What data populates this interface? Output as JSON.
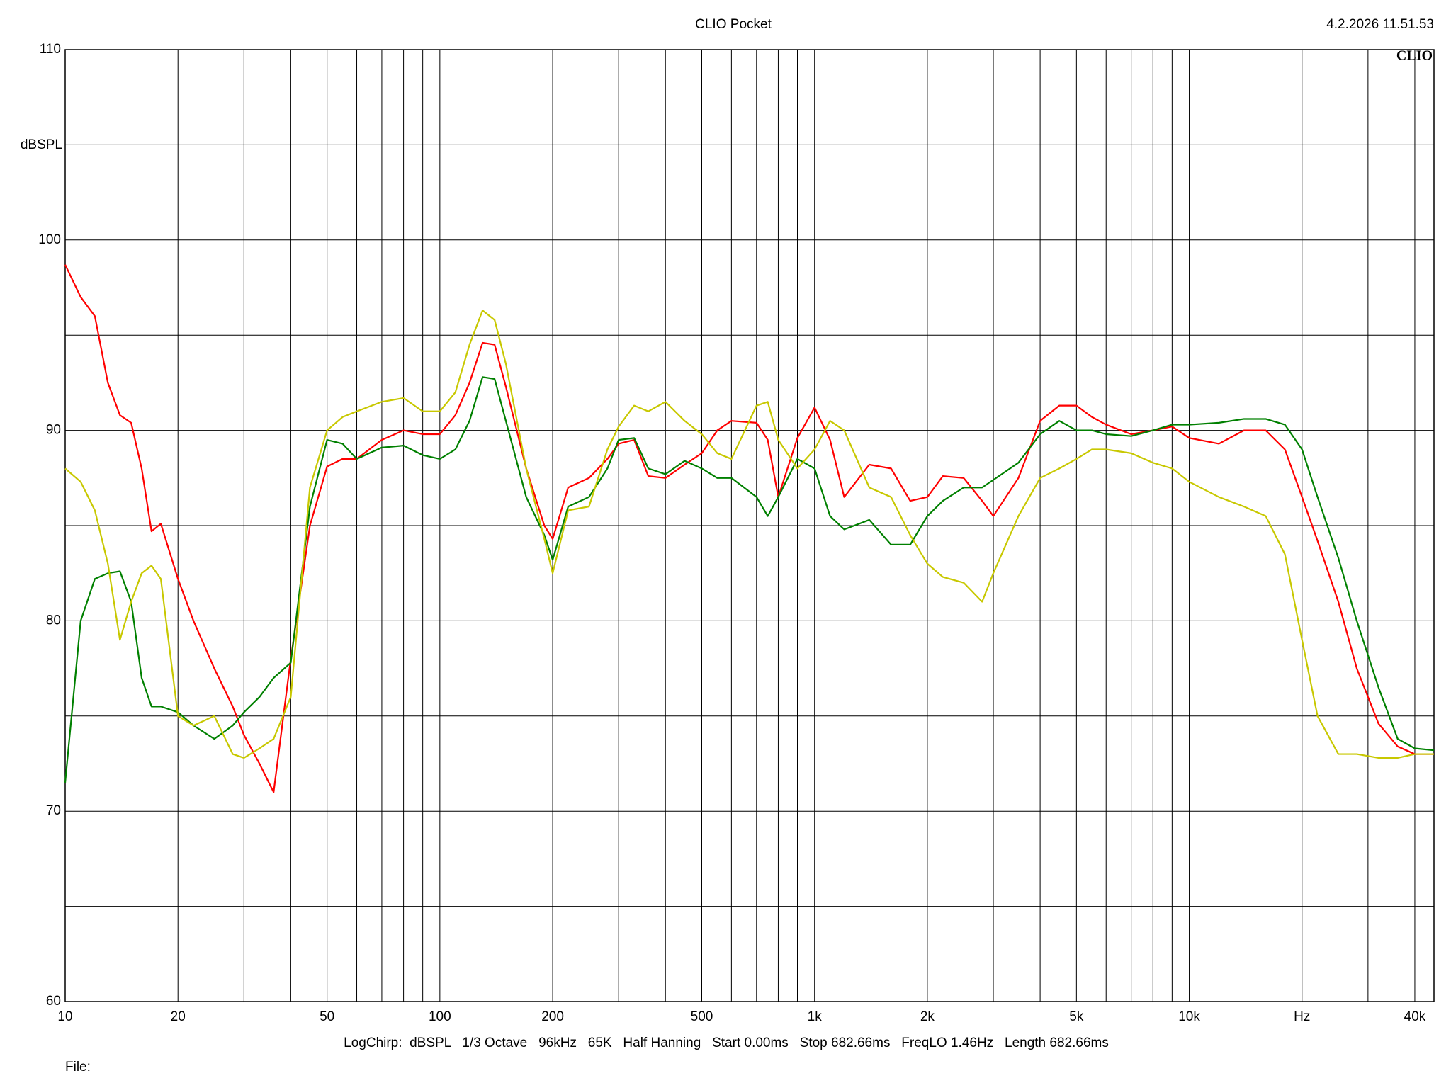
{
  "chart_data": {
    "type": "line",
    "title": "CLIO Pocket",
    "timestamp": "4.2.2026 11.51.53",
    "logo": "CLIO",
    "y_label": "dBSPL",
    "footer": "LogChirp:  dBSPL   1/3 Octave   96kHz   65K   Half Hanning   Start 0.00ms   Stop 682.66ms   FreqLO 1.46Hz   Length 682.66ms",
    "file_label": "File:",
    "xscale": "log",
    "grid": true,
    "xlim": [
      10,
      45000
    ],
    "ylim": [
      60,
      110
    ],
    "xticks": [
      10,
      20,
      50,
      100,
      200,
      500,
      {
        "value": 1000,
        "label": "1k"
      },
      {
        "value": 2000,
        "label": "2k"
      },
      {
        "value": 5000,
        "label": "5k"
      },
      {
        "value": 10000,
        "label": "10k"
      },
      {
        "value": 20000,
        "label": "Hz"
      },
      {
        "value": 40000,
        "label": "40k"
      }
    ],
    "yticks": [
      60,
      70,
      80,
      90,
      100,
      110
    ],
    "x_grid": [
      10,
      20,
      30,
      40,
      50,
      60,
      70,
      80,
      90,
      100,
      200,
      300,
      400,
      500,
      600,
      700,
      800,
      900,
      1000,
      2000,
      3000,
      4000,
      5000,
      6000,
      7000,
      8000,
      9000,
      10000,
      20000,
      30000,
      40000
    ],
    "y_grid": [
      60,
      65,
      70,
      75,
      80,
      85,
      90,
      95,
      100,
      105,
      110
    ],
    "x": [
      10,
      11,
      12,
      13,
      14,
      15,
      16,
      17,
      18,
      20,
      22,
      25,
      28,
      30,
      33,
      36,
      40,
      45,
      50,
      55,
      60,
      70,
      80,
      90,
      100,
      110,
      120,
      130,
      140,
      150,
      170,
      190,
      200,
      220,
      250,
      280,
      300,
      330,
      360,
      400,
      450,
      500,
      550,
      600,
      700,
      750,
      800,
      900,
      1000,
      1100,
      1200,
      1400,
      1600,
      1800,
      2000,
      2200,
      2500,
      2800,
      3000,
      3500,
      4000,
      4500,
      5000,
      5500,
      6000,
      7000,
      8000,
      9000,
      10000,
      12000,
      14000,
      16000,
      18000,
      20000,
      22000,
      25000,
      28000,
      32000,
      36000,
      40000,
      45000
    ],
    "series": [
      {
        "color": "#ff0000",
        "values": [
          98.7,
          97,
          96,
          92.5,
          90.8,
          90.4,
          88,
          84.7,
          85.1,
          82.2,
          80,
          77.5,
          75.5,
          74,
          72.5,
          71,
          78,
          85,
          88.1,
          88.5,
          88.5,
          89.5,
          90,
          89.8,
          89.8,
          90.8,
          92.5,
          94.6,
          94.5,
          92.3,
          88,
          85,
          84.3,
          87,
          87.5,
          88.5,
          89.3,
          89.5,
          87.6,
          87.5,
          88.2,
          88.8,
          90,
          90.5,
          90.4,
          89.5,
          86.5,
          89.6,
          91.2,
          89.5,
          86.5,
          88.2,
          88,
          86.3,
          86.5,
          87.6,
          87.5,
          86.3,
          85.5,
          87.5,
          90.5,
          91.3,
          91.3,
          90.7,
          90.3,
          89.8,
          90,
          90.2,
          89.6,
          89.3,
          90,
          90,
          89,
          86.5,
          84.2,
          81,
          77.5,
          74.6,
          73.4,
          73,
          73
        ]
      },
      {
        "color": "#008000",
        "values": [
          71.5,
          80,
          82.2,
          82.5,
          82.6,
          81,
          77,
          75.5,
          75.5,
          75.2,
          74.5,
          73.8,
          74.5,
          75.2,
          76,
          77,
          77.8,
          86,
          89.5,
          89.3,
          88.5,
          89.1,
          89.2,
          88.7,
          88.5,
          89,
          90.5,
          92.8,
          92.7,
          90.5,
          86.5,
          84.5,
          83.2,
          86,
          86.5,
          88,
          89.5,
          89.6,
          88,
          87.7,
          88.4,
          88,
          87.5,
          87.5,
          86.5,
          85.5,
          86.5,
          88.5,
          88,
          85.5,
          84.8,
          85.3,
          84,
          84,
          85.5,
          86.3,
          87,
          87,
          87.4,
          88.3,
          89.8,
          90.5,
          90,
          90,
          89.8,
          89.7,
          90,
          90.3,
          90.3,
          90.4,
          90.6,
          90.6,
          90.3,
          89,
          86.5,
          83.3,
          80,
          76.5,
          73.8,
          73.3,
          73.2
        ]
      },
      {
        "color": "#c8c800",
        "values": [
          88,
          87.3,
          85.8,
          83,
          79,
          81,
          82.5,
          82.9,
          82.2,
          75,
          74.5,
          75,
          73,
          72.8,
          73.3,
          73.8,
          76,
          87,
          90,
          90.7,
          91,
          91.5,
          91.7,
          91,
          91,
          92,
          94.5,
          96.3,
          95.8,
          93.5,
          88,
          84.3,
          82.5,
          85.8,
          86,
          89,
          90.2,
          91.3,
          91,
          91.5,
          90.5,
          89.8,
          88.8,
          88.5,
          91.3,
          91.5,
          89.5,
          88,
          89,
          90.5,
          90,
          87,
          86.5,
          84.5,
          83,
          82.3,
          82,
          81,
          82.5,
          85.5,
          87.5,
          88,
          88.5,
          89,
          89,
          88.8,
          88.3,
          88,
          87.3,
          86.5,
          86,
          85.5,
          83.5,
          79,
          75,
          73,
          73,
          72.8,
          72.8,
          73,
          73
        ]
      }
    ]
  }
}
